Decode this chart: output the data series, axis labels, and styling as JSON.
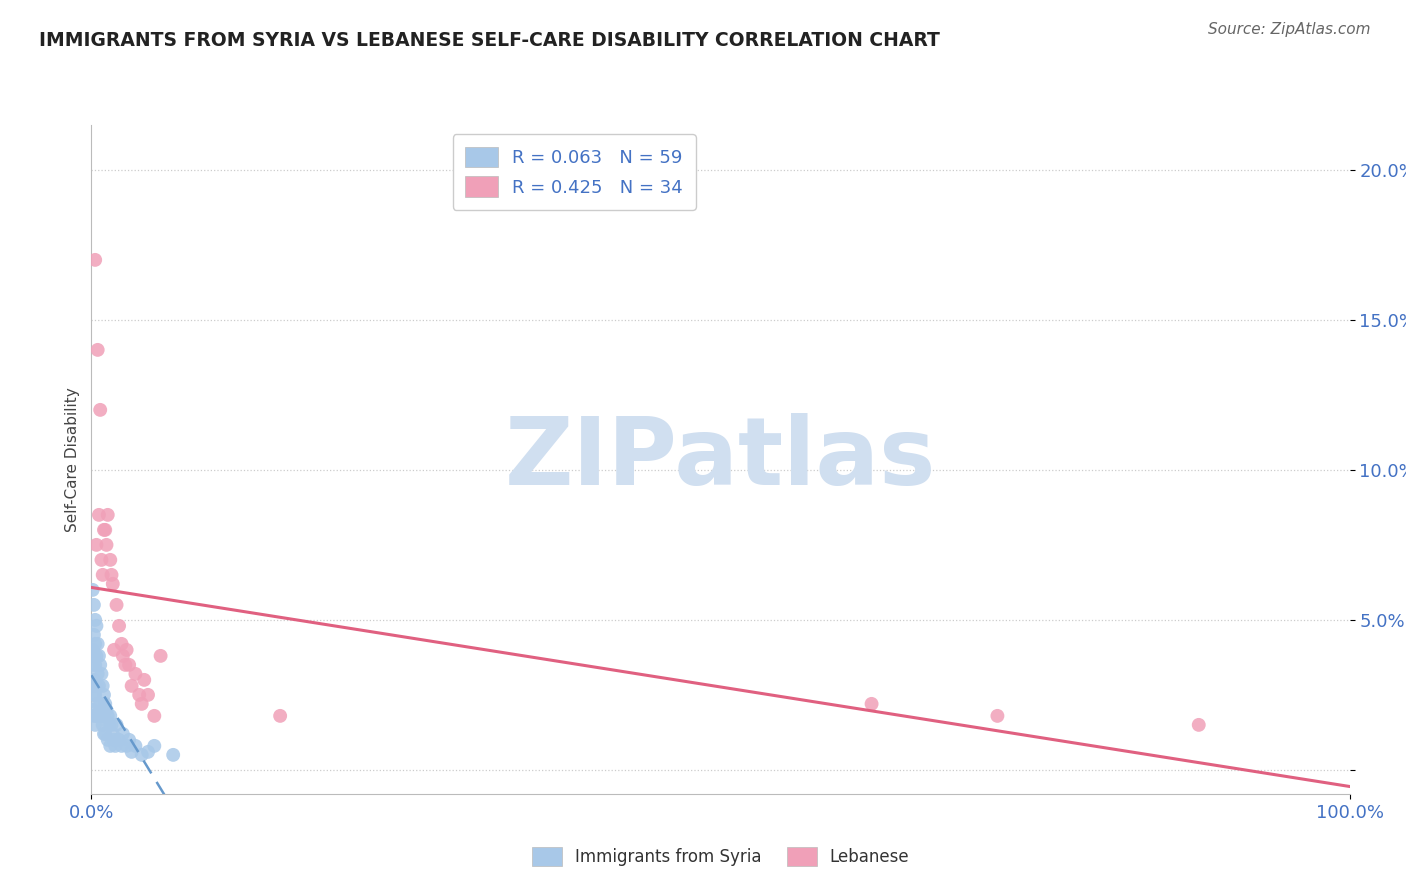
{
  "title": "IMMIGRANTS FROM SYRIA VS LEBANESE SELF-CARE DISABILITY CORRELATION CHART",
  "source": "Source: ZipAtlas.com",
  "ylabel": "Self-Care Disability",
  "r_syria": 0.063,
  "n_syria": 59,
  "r_lebanese": 0.425,
  "n_lebanese": 34,
  "color_syria": "#a8c8e8",
  "color_lebanese": "#f0a0b8",
  "color_syria_line": "#6699cc",
  "color_lebanese_line": "#e06080",
  "color_title": "#222222",
  "color_source": "#666666",
  "color_axis_labels": "#4472c4",
  "color_legend_text": "#4472c4",
  "watermark_text": "ZIPatlas",
  "watermark_color": "#d0dff0",
  "background_color": "#ffffff",
  "grid_color": "#cccccc",
  "xlim": [
    0.0,
    1.0
  ],
  "ylim": [
    -0.008,
    0.215
  ],
  "yticks": [
    0.0,
    0.05,
    0.1,
    0.15,
    0.2
  ],
  "ytick_labels": [
    "",
    "5.0%",
    "10.0%",
    "15.0%",
    "20.0%"
  ],
  "syria_x": [
    0.001,
    0.001,
    0.001,
    0.001,
    0.001,
    0.002,
    0.002,
    0.002,
    0.002,
    0.002,
    0.002,
    0.003,
    0.003,
    0.003,
    0.003,
    0.003,
    0.004,
    0.004,
    0.004,
    0.004,
    0.005,
    0.005,
    0.005,
    0.006,
    0.006,
    0.006,
    0.007,
    0.007,
    0.008,
    0.008,
    0.009,
    0.009,
    0.01,
    0.01,
    0.01,
    0.011,
    0.011,
    0.012,
    0.013,
    0.013,
    0.014,
    0.015,
    0.015,
    0.016,
    0.017,
    0.018,
    0.019,
    0.02,
    0.022,
    0.024,
    0.025,
    0.028,
    0.03,
    0.032,
    0.035,
    0.04,
    0.045,
    0.05,
    0.065
  ],
  "syria_y": [
    0.06,
    0.04,
    0.035,
    0.028,
    0.02,
    0.055,
    0.045,
    0.038,
    0.03,
    0.025,
    0.018,
    0.05,
    0.042,
    0.035,
    0.025,
    0.015,
    0.048,
    0.038,
    0.028,
    0.018,
    0.042,
    0.032,
    0.022,
    0.038,
    0.028,
    0.018,
    0.035,
    0.022,
    0.032,
    0.018,
    0.028,
    0.015,
    0.025,
    0.018,
    0.012,
    0.022,
    0.012,
    0.02,
    0.018,
    0.01,
    0.015,
    0.018,
    0.008,
    0.015,
    0.012,
    0.01,
    0.008,
    0.015,
    0.01,
    0.008,
    0.012,
    0.008,
    0.01,
    0.006,
    0.008,
    0.005,
    0.006,
    0.008,
    0.005
  ],
  "lebanese_x": [
    0.003,
    0.004,
    0.005,
    0.006,
    0.007,
    0.008,
    0.009,
    0.01,
    0.011,
    0.012,
    0.013,
    0.015,
    0.016,
    0.017,
    0.018,
    0.02,
    0.022,
    0.024,
    0.025,
    0.027,
    0.028,
    0.03,
    0.032,
    0.035,
    0.038,
    0.04,
    0.042,
    0.045,
    0.05,
    0.055,
    0.15,
    0.62,
    0.72,
    0.88
  ],
  "lebanese_y": [
    0.17,
    0.075,
    0.14,
    0.085,
    0.12,
    0.07,
    0.065,
    0.08,
    0.08,
    0.075,
    0.085,
    0.07,
    0.065,
    0.062,
    0.04,
    0.055,
    0.048,
    0.042,
    0.038,
    0.035,
    0.04,
    0.035,
    0.028,
    0.032,
    0.025,
    0.022,
    0.03,
    0.025,
    0.018,
    0.038,
    0.018,
    0.022,
    0.018,
    0.015
  ],
  "legend_syria_label": "Immigrants from Syria",
  "legend_lebanese_label": "Lebanese"
}
